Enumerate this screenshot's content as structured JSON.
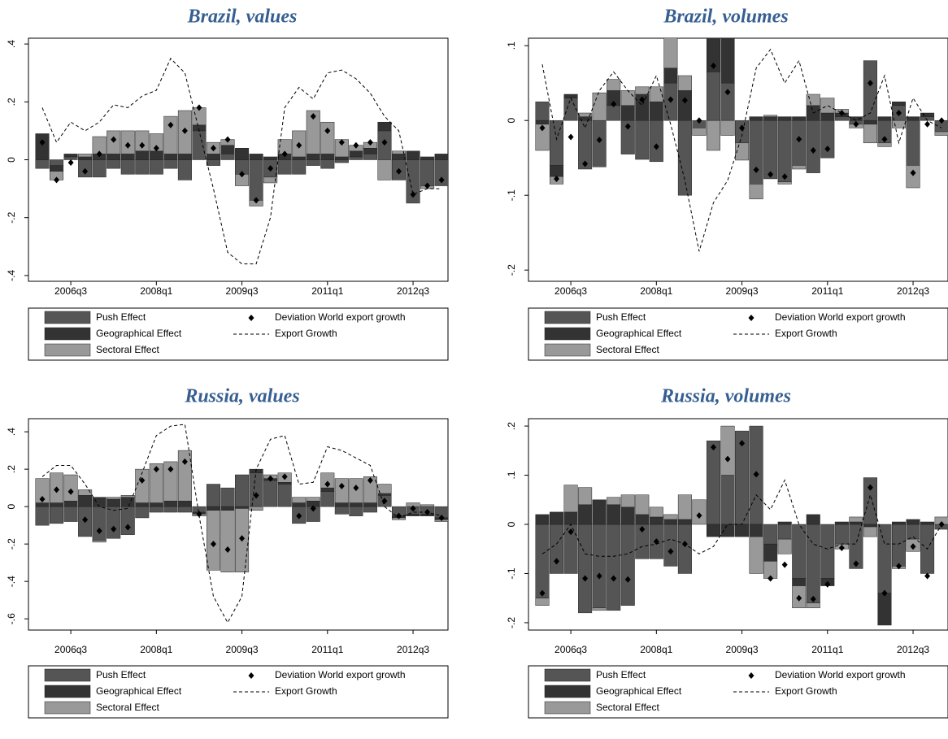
{
  "chart_data": [
    {
      "type": "bar",
      "title": "Brazil, values",
      "categories": [
        null,
        null,
        "2006q3",
        null,
        null,
        null,
        null,
        null,
        "2008q1",
        null,
        null,
        null,
        null,
        null,
        "2009q3",
        null,
        null,
        null,
        null,
        null,
        "2011q1",
        null,
        null,
        null,
        null,
        null,
        "2012q3",
        null,
        null
      ],
      "ylim": [
        -0.42,
        0.42
      ],
      "yticks": [
        {
          "value": -0.4,
          "label": "-.4"
        },
        {
          "value": -0.2,
          "label": "-.2"
        },
        0,
        {
          "value": 0.2,
          "label": ".2"
        },
        {
          "value": 0.4,
          "label": ".4"
        }
      ],
      "series": [
        {
          "name": "Push Effect",
          "type": "bar",
          "color": "#555555",
          "values": [
            -0.03,
            -0.02,
            0.01,
            -0.06,
            -0.06,
            -0.03,
            -0.05,
            -0.05,
            -0.05,
            -0.03,
            -0.07,
            0.1,
            -0.02,
            0.02,
            -0.05,
            -0.14,
            -0.06,
            -0.05,
            -0.05,
            -0.02,
            -0.03,
            -0.01,
            0.01,
            0.02,
            0.1,
            -0.07,
            -0.15,
            -0.09,
            -0.09
          ]
        },
        {
          "name": "Geographical Effect",
          "type": "bar",
          "color": "#333333",
          "values": [
            0.09,
            -0.02,
            0.01,
            0.01,
            0.02,
            0.02,
            0.02,
            0.03,
            0.03,
            0.02,
            0.02,
            0.02,
            0.02,
            0.03,
            0.04,
            0.02,
            0.01,
            0.02,
            0.01,
            0.02,
            0.02,
            0.01,
            0.02,
            0.02,
            0.03,
            0.02,
            0.03,
            0.01,
            0.02
          ]
        },
        {
          "name": "Sectoral Effect",
          "type": "bar",
          "color": "#999999",
          "values": [
            0,
            -0.03,
            0,
            0.01,
            0.06,
            0.08,
            0.08,
            0.07,
            0.06,
            0.13,
            0.15,
            0.06,
            0.04,
            0.02,
            -0.04,
            -0.02,
            -0.02,
            0.05,
            0.09,
            0.15,
            0.11,
            0.06,
            0.02,
            0.02,
            -0.07,
            0.01,
            0,
            -0.01,
            0
          ]
        },
        {
          "name": "Deviation World export growth",
          "type": "scatter",
          "color": "#000000",
          "values": [
            0.06,
            -0.07,
            -0.01,
            -0.04,
            0.02,
            0.07,
            0.05,
            0.05,
            0.04,
            0.12,
            0.1,
            0.18,
            0.04,
            0.07,
            -0.05,
            -0.14,
            -0.03,
            0.02,
            0.05,
            0.15,
            0.1,
            0.06,
            0.05,
            0.06,
            0.06,
            -0.04,
            -0.12,
            -0.09,
            -0.07
          ]
        },
        {
          "name": "Export Growth",
          "type": "line",
          "color": "#000000",
          "values": [
            0.18,
            0.06,
            0.13,
            0.1,
            0.13,
            0.19,
            0.18,
            0.22,
            0.24,
            0.35,
            0.3,
            0.1,
            -0.1,
            -0.32,
            -0.36,
            -0.36,
            -0.2,
            0.18,
            0.25,
            0.21,
            0.3,
            0.31,
            0.28,
            0.23,
            0.15,
            0.1,
            -0.12,
            -0.1,
            -0.1
          ]
        }
      ]
    },
    {
      "type": "bar",
      "title": "Brazil, volumes",
      "categories": [
        null,
        null,
        "2006q3",
        null,
        null,
        null,
        null,
        null,
        "2008q1",
        null,
        null,
        null,
        null,
        null,
        "2009q3",
        null,
        null,
        null,
        null,
        null,
        "2011q1",
        null,
        null,
        null,
        null,
        null,
        "2012q3",
        null,
        null
      ],
      "ylim": [
        -0.215,
        0.11
      ],
      "yticks": [
        {
          "value": -0.2,
          "label": "-.2"
        },
        {
          "value": -0.1,
          "label": "-.1"
        },
        0,
        {
          "value": 0.1,
          "label": ".1"
        }
      ],
      "series": [
        {
          "name": "Push Effect",
          "type": "bar",
          "color": "#555555",
          "values": [
            0.025,
            -0.06,
            0.03,
            -0.065,
            -0.062,
            0.02,
            -0.045,
            -0.052,
            -0.055,
            0.05,
            -0.1,
            -0.01,
            0.065,
            0.05,
            -0.03,
            -0.085,
            -0.078,
            -0.082,
            -0.06,
            -0.07,
            -0.05,
            0.005,
            -0.005,
            0.08,
            -0.03,
            0.02,
            -0.06,
            0.005,
            -0.015
          ]
        },
        {
          "name": "Geographical Effect",
          "type": "bar",
          "color": "#333333",
          "values": [
            -0.005,
            -0.015,
            0.005,
            0.005,
            0,
            0.02,
            0.02,
            0.035,
            0.025,
            0.02,
            0.04,
            0,
            0.05,
            0.06,
            0,
            0.005,
            0.005,
            0.005,
            0.005,
            0.02,
            0.01,
            0.005,
            0.005,
            -0.005,
            0.005,
            0.005,
            0.005,
            0.005,
            0
          ]
        },
        {
          "name": "Sectoral Effect",
          "type": "bar",
          "color": "#999999",
          "values": [
            -0.035,
            -0.01,
            0,
            0.005,
            0.037,
            0.015,
            0.02,
            0.01,
            0.02,
            0.045,
            0.02,
            -0.01,
            -0.04,
            -0.02,
            -0.023,
            -0.02,
            0.002,
            -0.003,
            -0.005,
            0.015,
            0.02,
            0.005,
            -0.005,
            -0.025,
            -0.005,
            -0.01,
            -0.03,
            0,
            -0.005
          ]
        },
        {
          "name": "Deviation World export growth",
          "type": "scatter",
          "color": "#000000",
          "values": [
            -0.01,
            -0.078,
            -0.022,
            -0.058,
            -0.026,
            0.022,
            -0.008,
            0.028,
            -0.035,
            0.028,
            0.027,
            0,
            0.073,
            0.038,
            -0.01,
            -0.066,
            -0.072,
            -0.075,
            -0.025,
            -0.04,
            -0.038,
            0.01,
            -0.005,
            0.05,
            -0.025,
            0.01,
            -0.07,
            -0.005,
            0
          ]
        },
        {
          "name": "Export Growth",
          "type": "line",
          "color": "#000000",
          "values": [
            0.075,
            -0.025,
            0.03,
            -0.01,
            0.04,
            0.065,
            0.04,
            0.02,
            0.06,
            -0.005,
            -0.08,
            -0.175,
            -0.11,
            -0.08,
            -0.02,
            0.07,
            0.095,
            0.05,
            0.08,
            0.01,
            0.02,
            0.01,
            0,
            0.01,
            0.06,
            -0.03,
            0.03,
            0,
            -0.01
          ]
        }
      ]
    },
    {
      "type": "bar",
      "title": "Russia, values",
      "categories": [
        null,
        null,
        "2006q3",
        null,
        null,
        null,
        null,
        null,
        "2008q1",
        null,
        null,
        null,
        null,
        null,
        "2009q3",
        null,
        null,
        null,
        null,
        null,
        "2011q1",
        null,
        null,
        null,
        null,
        null,
        "2012q3",
        null,
        null
      ],
      "ylim": [
        -0.66,
        0.47
      ],
      "yticks": [
        {
          "value": -0.6,
          "label": "-.6"
        },
        {
          "value": -0.4,
          "label": "-.4"
        },
        {
          "value": -0.2,
          "label": "-.2"
        },
        0,
        {
          "value": 0.2,
          "label": ".2"
        },
        {
          "value": 0.4,
          "label": ".4"
        }
      ],
      "series": [
        {
          "name": "Push Effect",
          "type": "bar",
          "color": "#555555",
          "values": [
            -0.1,
            -0.09,
            -0.08,
            -0.16,
            -0.18,
            -0.17,
            -0.15,
            -0.06,
            -0.03,
            -0.03,
            -0.03,
            -0.03,
            0.12,
            0.1,
            0.17,
            0.18,
            0.14,
            0.12,
            -0.09,
            -0.08,
            0.08,
            -0.04,
            -0.05,
            -0.03,
            0.06,
            -0.05,
            -0.04,
            -0.04,
            -0.06
          ]
        },
        {
          "name": "Geographical Effect",
          "type": "bar",
          "color": "#333333",
          "values": [
            0.02,
            0.02,
            0.03,
            0.06,
            0.05,
            0.04,
            0.05,
            0.02,
            0.02,
            0.03,
            0.03,
            -0.01,
            -0.02,
            -0.02,
            -0.01,
            0.02,
            0.01,
            0.01,
            0.02,
            0.03,
            0.02,
            0.02,
            0.02,
            0.02,
            0.01,
            -0.01,
            -0.01,
            -0.01,
            -0.01
          ]
        },
        {
          "name": "Sectoral Effect",
          "type": "bar",
          "color": "#999999",
          "values": [
            0.13,
            0.16,
            0.14,
            0.03,
            -0.01,
            0.01,
            0.01,
            0.18,
            0.21,
            0.21,
            0.27,
            -0.01,
            -0.32,
            -0.33,
            -0.34,
            -0.02,
            0.02,
            0.05,
            0.03,
            0.02,
            0.08,
            0.13,
            0.13,
            0.14,
            0.05,
            -0.01,
            0.02,
            0.01,
            -0.01
          ]
        },
        {
          "name": "Deviation World export growth",
          "type": "scatter",
          "color": "#000000",
          "values": [
            0.04,
            0.09,
            0.08,
            -0.07,
            -0.13,
            -0.12,
            -0.11,
            0.14,
            0.2,
            0.2,
            0.24,
            -0.04,
            -0.2,
            -0.23,
            -0.17,
            0.06,
            0.15,
            0.16,
            -0.05,
            -0.01,
            0.12,
            0.11,
            0.1,
            0.14,
            0.03,
            -0.05,
            -0.01,
            -0.03,
            -0.06
          ]
        },
        {
          "name": "Export Growth",
          "type": "line",
          "color": "#000000",
          "values": [
            0.16,
            0.22,
            0.22,
            0.12,
            0,
            -0.02,
            -0.01,
            0.18,
            0.38,
            0.43,
            0.44,
            -0.05,
            -0.48,
            -0.62,
            -0.48,
            0.2,
            0.36,
            0.38,
            0.12,
            0.13,
            0.32,
            0.3,
            0.26,
            0.22,
            0,
            -0.06,
            -0.03,
            -0.03,
            -0.05
          ]
        }
      ]
    },
    {
      "type": "bar",
      "title": "Russia, volumes",
      "categories": [
        null,
        null,
        "2006q3",
        null,
        null,
        null,
        null,
        null,
        "2008q1",
        null,
        null,
        null,
        null,
        null,
        "2009q3",
        null,
        null,
        null,
        null,
        null,
        "2011q1",
        null,
        null,
        null,
        null,
        null,
        "2012q3",
        null,
        null
      ],
      "ylim": [
        -0.215,
        0.215
      ],
      "yticks": [
        {
          "value": -0.2,
          "label": "-.2"
        },
        {
          "value": -0.1,
          "label": "-.1"
        },
        0,
        {
          "value": 0.1,
          "label": ".1"
        },
        {
          "value": 0.2,
          "label": ".2"
        }
      ],
      "series": [
        {
          "name": "Push Effect",
          "type": "bar",
          "color": "#555555",
          "values": [
            -0.15,
            -0.1,
            -0.1,
            -0.18,
            -0.17,
            -0.175,
            -0.165,
            -0.07,
            -0.07,
            -0.085,
            -0.1,
            0,
            0.17,
            0.1,
            0.19,
            0.2,
            -0.04,
            -0.03,
            -0.11,
            -0.16,
            -0.11,
            -0.04,
            -0.09,
            0.095,
            -0.14,
            -0.085,
            -0.03,
            -0.1,
            -0.01
          ]
        },
        {
          "name": "Geographical Effect",
          "type": "bar",
          "color": "#333333",
          "values": [
            0.02,
            0.025,
            0.025,
            0.04,
            0.05,
            0.04,
            0.035,
            0.02,
            0.015,
            0.01,
            0.01,
            0,
            -0.025,
            -0.025,
            -0.025,
            -0.025,
            -0.035,
            0.005,
            -0.015,
            0.02,
            -0.015,
            0.005,
            0.005,
            -0.005,
            -0.065,
            0.005,
            0.01,
            0.005,
            0
          ]
        },
        {
          "name": "Sectoral Effect",
          "type": "bar",
          "color": "#999999",
          "values": [
            -0.015,
            0,
            0.055,
            0.035,
            -0.005,
            0.015,
            0.025,
            0.04,
            0.02,
            0.01,
            0.05,
            0.05,
            0,
            0.1,
            0,
            -0.075,
            -0.035,
            -0.03,
            -0.045,
            -0.01,
            0,
            -0.01,
            0.01,
            -0.02,
            0,
            -0.005,
            -0.025,
            0,
            0.015
          ]
        },
        {
          "name": "Deviation World export growth",
          "type": "scatter",
          "color": "#000000",
          "values": [
            -0.14,
            -0.075,
            -0.015,
            -0.11,
            -0.105,
            -0.11,
            -0.112,
            -0.01,
            -0.035,
            -0.055,
            -0.04,
            0.018,
            0.157,
            0.133,
            0.165,
            0.102,
            -0.11,
            -0.082,
            -0.15,
            -0.152,
            -0.122,
            -0.048,
            -0.08,
            0.075,
            -0.14,
            -0.085,
            -0.045,
            -0.105,
            0
          ]
        },
        {
          "name": "Export Growth",
          "type": "line",
          "color": "#000000",
          "values": [
            -0.06,
            -0.04,
            0,
            -0.06,
            -0.065,
            -0.065,
            -0.06,
            -0.045,
            -0.04,
            -0.03,
            -0.04,
            -0.06,
            -0.045,
            0,
            0,
            0.06,
            0.03,
            0.09,
            0,
            -0.04,
            -0.05,
            -0.04,
            -0.04,
            0.06,
            -0.04,
            -0.04,
            -0.025,
            -0.05,
            0
          ]
        }
      ]
    }
  ]
}
